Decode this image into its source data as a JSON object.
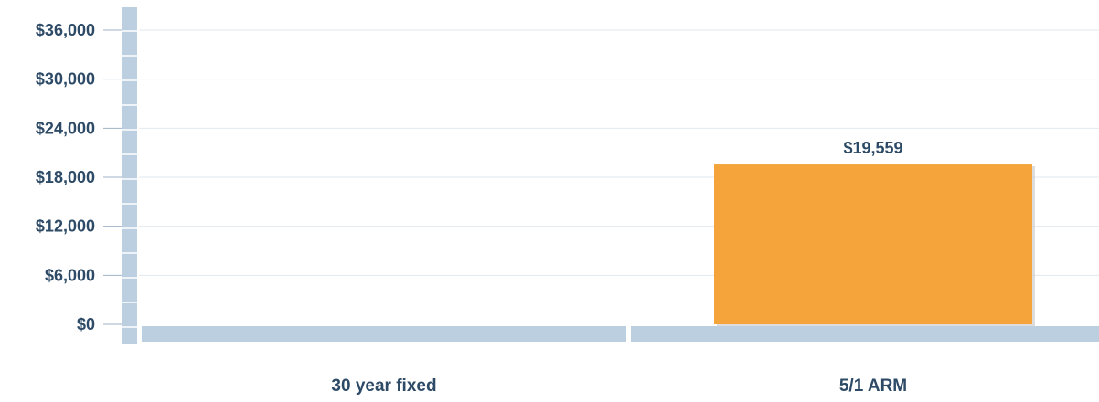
{
  "chart_data": {
    "type": "bar",
    "categories": [
      "30 year fixed",
      "5/1 ARM"
    ],
    "values": [
      0,
      19559
    ],
    "data_labels": [
      "",
      "$19,559"
    ],
    "y_ticks": [
      0,
      6000,
      12000,
      18000,
      24000,
      30000,
      36000
    ],
    "y_tick_labels": [
      "$0",
      "$6,000",
      "$12,000",
      "$18,000",
      "$24,000",
      "$30,000",
      "$36,000"
    ],
    "ylim": [
      0,
      36000
    ],
    "grid": true,
    "legend": "none",
    "colors": {
      "bar": "#f4a43a",
      "axis": "#bccfe0",
      "grid": "#e3e8ee",
      "label": "#2d4a66"
    }
  }
}
